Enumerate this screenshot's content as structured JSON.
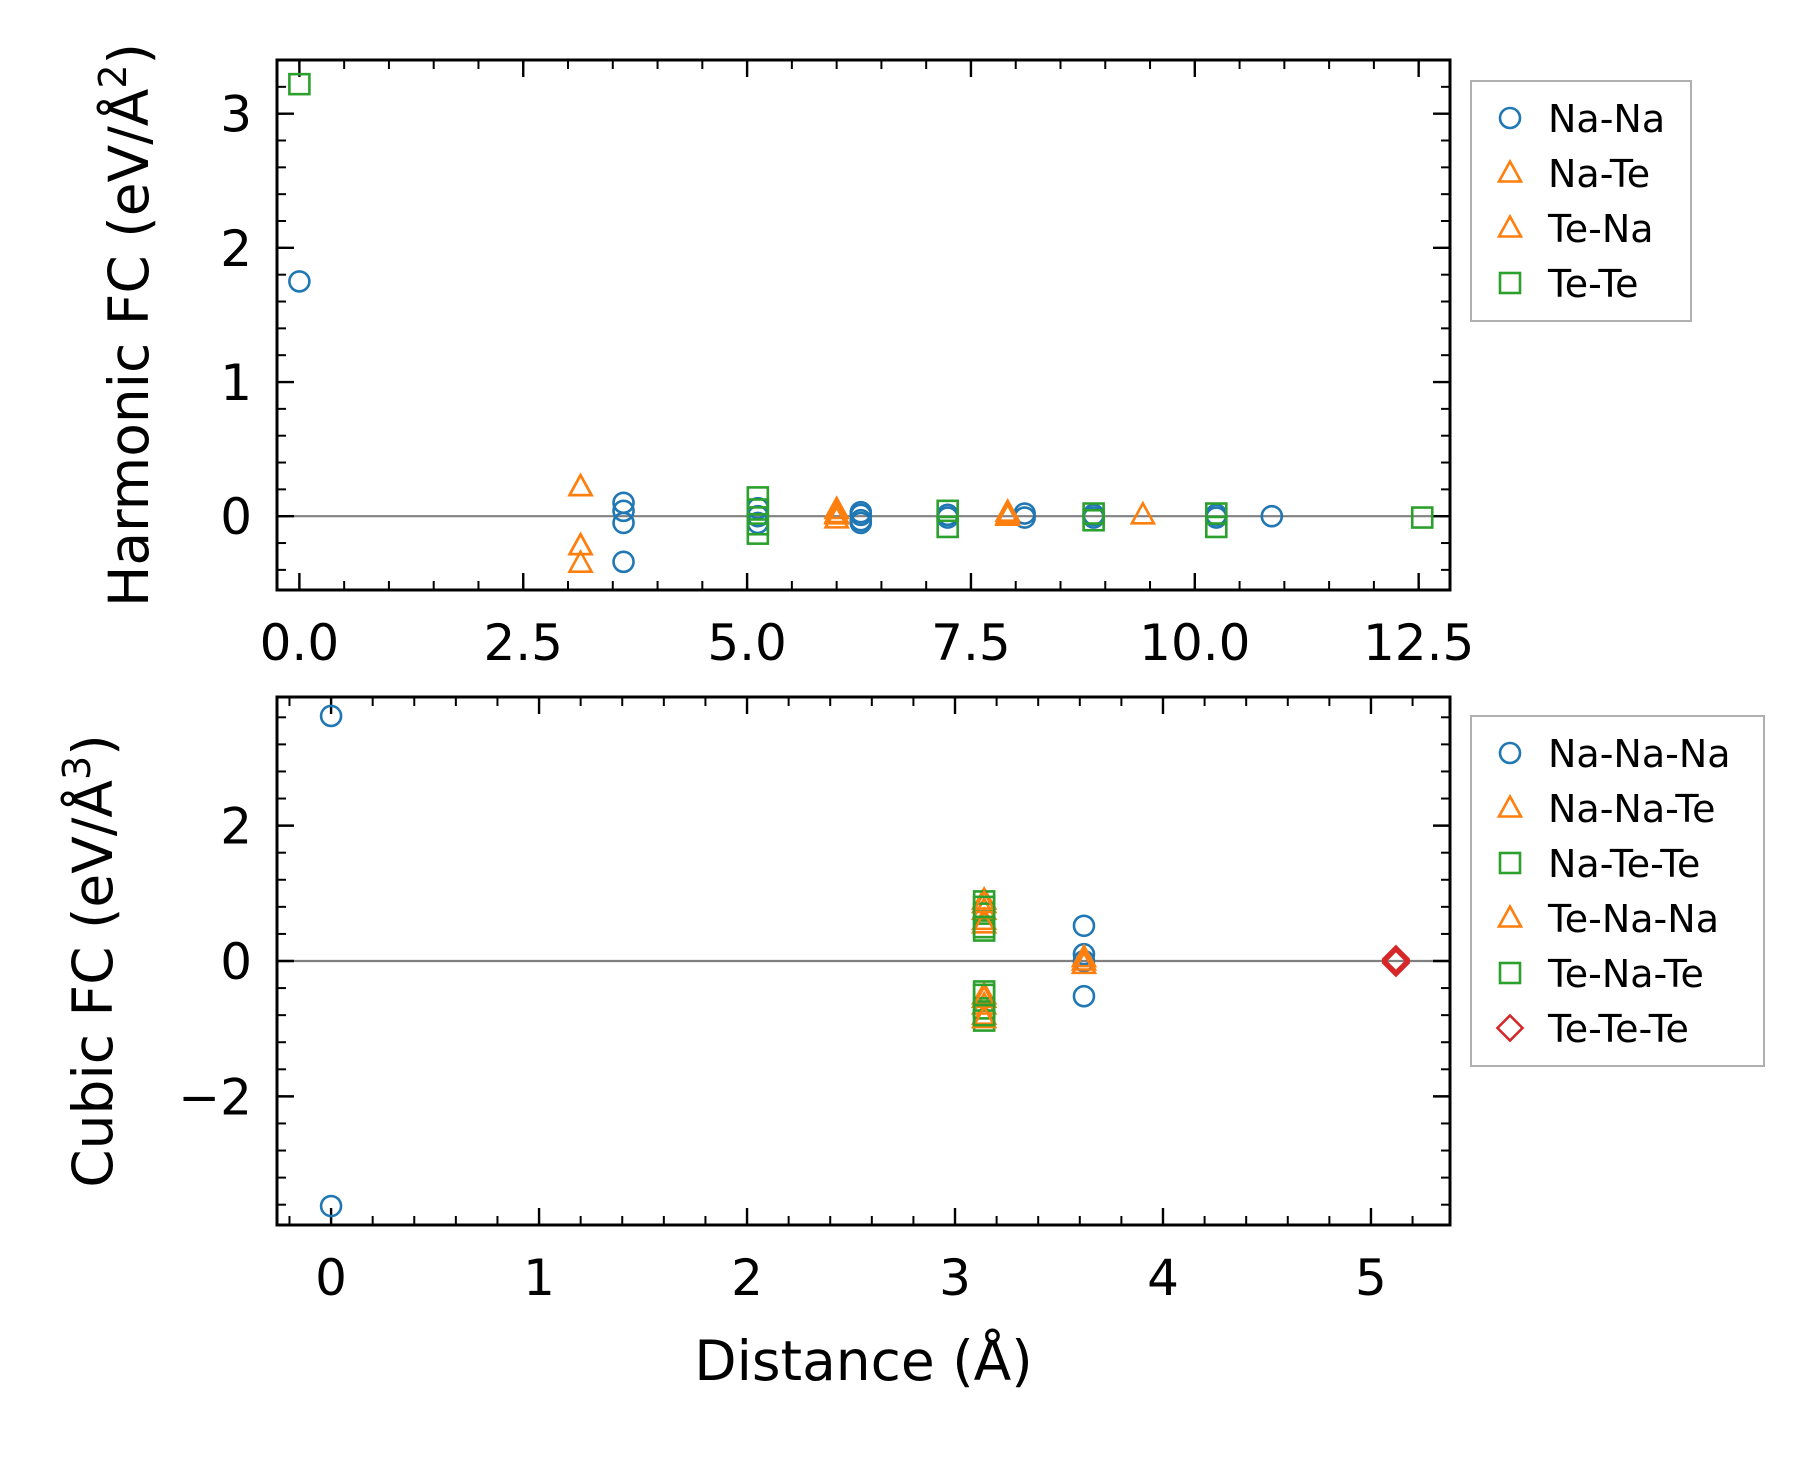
{
  "chart_data": [
    {
      "type": "scatter",
      "ylabel_main": "Harmonic FC (eV/Å",
      "ylabel_sup": "2",
      "ylabel_close": ")",
      "xlabel": "",
      "xlim": [
        -0.25,
        12.85
      ],
      "ylim": [
        -0.55,
        3.4
      ],
      "xticks": [
        0.0,
        2.5,
        5.0,
        7.5,
        10.0,
        12.5
      ],
      "xtick_labels": [
        "0.0",
        "2.5",
        "5.0",
        "7.5",
        "10.0",
        "12.5"
      ],
      "xminor_step": 0.5,
      "yticks": [
        0,
        1,
        2,
        3
      ],
      "ytick_labels": [
        "0",
        "1",
        "2",
        "3"
      ],
      "yminor_step": 0.2,
      "zero_line": true,
      "legend_position": "outside-right",
      "series": [
        {
          "name": "Na-Na",
          "marker": "circle",
          "color": "#1f77b4",
          "x": [
            0.0,
            3.62,
            3.62,
            3.62,
            3.62,
            5.12,
            5.12,
            5.12,
            6.27,
            6.27,
            6.27,
            6.27,
            7.24,
            7.24,
            8.1,
            8.1,
            8.87,
            8.87,
            10.24,
            10.24,
            10.86
          ],
          "y": [
            1.75,
            0.1,
            0.04,
            -0.05,
            -0.34,
            0.06,
            0.0,
            -0.05,
            0.03,
            0.01,
            -0.03,
            -0.05,
            0.01,
            -0.01,
            0.02,
            -0.01,
            0.01,
            -0.01,
            0.01,
            -0.01,
            0.0
          ]
        },
        {
          "name": "Na-Te",
          "marker": "triangle",
          "color": "#ff7f0e",
          "x": [
            3.14,
            3.14,
            3.14,
            6.0,
            6.0,
            6.0,
            7.91,
            7.91,
            9.42
          ],
          "y": [
            0.22,
            -0.22,
            -0.35,
            0.05,
            0.01,
            -0.02,
            0.03,
            0.0,
            0.01
          ]
        },
        {
          "name": "Te-Na",
          "marker": "triangle",
          "color": "#ff7f0e",
          "x": [
            3.14,
            3.14,
            6.0,
            7.91
          ],
          "y": [
            0.22,
            -0.22,
            0.02,
            0.01
          ]
        },
        {
          "name": "Te-Te",
          "marker": "square",
          "color": "#2ca02c",
          "x": [
            0.0,
            5.12,
            5.12,
            5.12,
            5.12,
            7.24,
            7.24,
            8.87,
            8.87,
            10.24,
            10.24,
            12.54
          ],
          "y": [
            3.22,
            0.14,
            0.05,
            -0.06,
            -0.13,
            0.04,
            -0.08,
            0.02,
            -0.03,
            0.02,
            -0.08,
            -0.01
          ]
        }
      ]
    },
    {
      "type": "scatter",
      "ylabel_main": "Cubic FC (eV/Å",
      "ylabel_sup": "3",
      "ylabel_close": ")",
      "xlabel": "Distance (Å)",
      "xlim": [
        -0.26,
        5.38
      ],
      "ylim": [
        -3.9,
        3.9
      ],
      "xticks": [
        0,
        1,
        2,
        3,
        4,
        5
      ],
      "xtick_labels": [
        "0",
        "1",
        "2",
        "3",
        "4",
        "5"
      ],
      "xminor_step": 0.2,
      "yticks": [
        -2,
        0,
        2
      ],
      "ytick_labels": [
        "−2",
        "0",
        "2"
      ],
      "yminor_step": 0.4,
      "zero_line": true,
      "legend_position": "outside-right",
      "series": [
        {
          "name": "Na-Na-Na",
          "marker": "circle",
          "color": "#1f77b4",
          "x": [
            0.0,
            0.0,
            3.62,
            3.62,
            3.62,
            3.62
          ],
          "y": [
            3.62,
            -3.62,
            0.52,
            0.1,
            0.0,
            -0.52
          ]
        },
        {
          "name": "Na-Na-Te",
          "marker": "triangle",
          "color": "#ff7f0e",
          "x": [
            3.14,
            3.14,
            3.14,
            3.14,
            3.14,
            3.14,
            3.62,
            3.62
          ],
          "y": [
            0.9,
            0.75,
            0.6,
            -0.5,
            -0.65,
            -0.8,
            0.05,
            -0.05
          ]
        },
        {
          "name": "Na-Te-Te",
          "marker": "square",
          "color": "#2ca02c",
          "x": [
            3.14,
            3.14,
            3.14,
            3.14,
            3.14,
            3.14
          ],
          "y": [
            0.88,
            0.7,
            0.45,
            -0.45,
            -0.7,
            -0.88
          ]
        },
        {
          "name": "Te-Na-Na",
          "marker": "triangle",
          "color": "#ff7f0e",
          "x": [
            3.14,
            3.14,
            3.14,
            3.14,
            3.62
          ],
          "y": [
            0.85,
            0.55,
            -0.55,
            -0.85,
            0.0
          ]
        },
        {
          "name": "Te-Na-Te",
          "marker": "square",
          "color": "#2ca02c",
          "x": [
            3.14,
            3.14,
            3.14,
            3.14
          ],
          "y": [
            0.8,
            0.5,
            -0.5,
            -0.8
          ]
        },
        {
          "name": "Te-Te-Te",
          "marker": "diamond",
          "color": "#d62728",
          "x": [
            5.12,
            5.12,
            5.12,
            5.12
          ],
          "y": [
            0.03,
            0.01,
            -0.01,
            -0.03
          ]
        }
      ]
    }
  ]
}
